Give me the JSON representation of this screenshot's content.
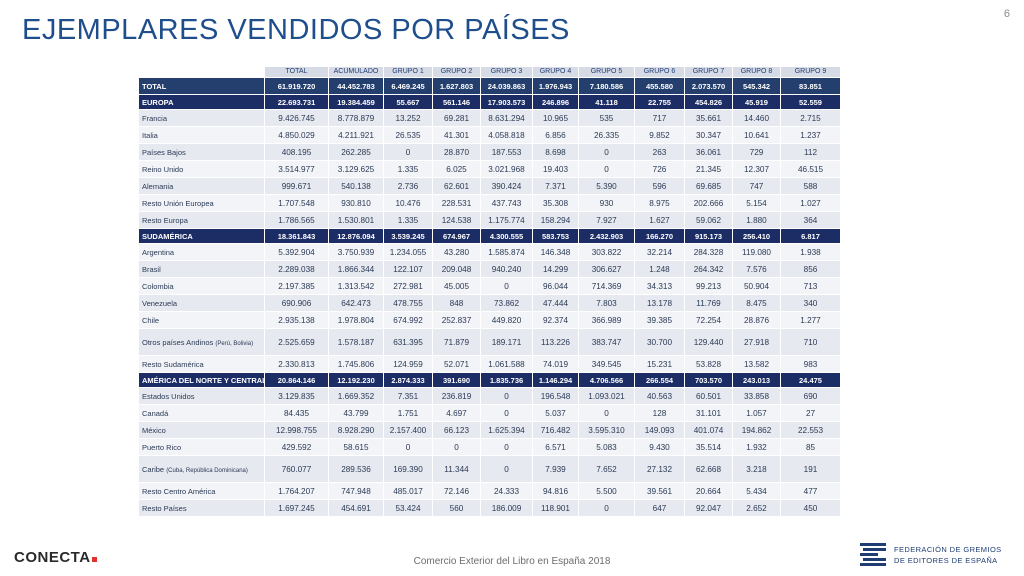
{
  "title": "EJEMPLARES VENDIDOS POR PAÍSES",
  "page_number": "6",
  "table": {
    "columns": [
      "TOTAL",
      "ACUMULADO",
      "GRUPO 1",
      "GRUPO 2",
      "GRUPO 3",
      "GRUPO 4",
      "GRUPO 5",
      "GRUPO 6",
      "GRUPO 7",
      "GRUPO 8",
      "GRUPO 9"
    ],
    "rows": [
      {
        "type": "total",
        "name": "TOTAL",
        "values": [
          "61.919.720",
          "44.452.783",
          "6.469.245",
          "1.627.803",
          "24.039.863",
          "1.976.943",
          "7.180.586",
          "455.580",
          "2.073.570",
          "545.342",
          "83.851"
        ]
      },
      {
        "type": "region",
        "name": "EUROPA",
        "values": [
          "22.693.731",
          "19.384.459",
          "55.667",
          "561.146",
          "17.903.573",
          "246.896",
          "41.118",
          "22.755",
          "454.826",
          "45.919",
          "52.559"
        ]
      },
      {
        "type": "country",
        "name": "Francia",
        "values": [
          "9.426.745",
          "8.778.879",
          "13.252",
          "69.281",
          "8.631.294",
          "10.965",
          "535",
          "717",
          "35.661",
          "14.460",
          "2.715"
        ]
      },
      {
        "type": "country",
        "name": "Italia",
        "values": [
          "4.850.029",
          "4.211.921",
          "26.535",
          "41.301",
          "4.058.818",
          "6.856",
          "26.335",
          "9.852",
          "30.347",
          "10.641",
          "1.237"
        ]
      },
      {
        "type": "country",
        "name": "Países Bajos",
        "values": [
          "408.195",
          "262.285",
          "0",
          "28.870",
          "187.553",
          "8.698",
          "0",
          "263",
          "36.061",
          "729",
          "112"
        ]
      },
      {
        "type": "country",
        "name": "Reino Unido",
        "values": [
          "3.514.977",
          "3.129.625",
          "1.335",
          "6.025",
          "3.021.968",
          "19.403",
          "0",
          "726",
          "21.345",
          "12.307",
          "46.515"
        ]
      },
      {
        "type": "country",
        "name": "Alemania",
        "values": [
          "999.671",
          "540.138",
          "2.736",
          "62.601",
          "390.424",
          "7.371",
          "5.390",
          "596",
          "69.685",
          "747",
          "588"
        ]
      },
      {
        "type": "country",
        "name": "Resto Unión Europea",
        "values": [
          "1.707.548",
          "930.810",
          "10.476",
          "228.531",
          "437.743",
          "35.308",
          "930",
          "8.975",
          "202.666",
          "5.154",
          "1.027"
        ]
      },
      {
        "type": "country",
        "name": "Resto Europa",
        "values": [
          "1.786.565",
          "1.530.801",
          "1.335",
          "124.538",
          "1.175.774",
          "158.294",
          "7.927",
          "1.627",
          "59.062",
          "1.880",
          "364"
        ]
      },
      {
        "type": "region",
        "name": "SUDAMÉRICA",
        "values": [
          "18.361.843",
          "12.876.094",
          "3.539.245",
          "674.967",
          "4.300.555",
          "583.753",
          "2.432.903",
          "166.270",
          "915.173",
          "256.410",
          "6.817"
        ]
      },
      {
        "type": "country",
        "name": "Argentina",
        "values": [
          "5.392.904",
          "3.750.939",
          "1.234.055",
          "43.280",
          "1.585.874",
          "146.348",
          "303.822",
          "32.214",
          "284.328",
          "119.080",
          "1.938"
        ]
      },
      {
        "type": "country",
        "name": "Brasil",
        "values": [
          "2.289.038",
          "1.866.344",
          "122.107",
          "209.048",
          "940.240",
          "14.299",
          "306.627",
          "1.248",
          "264.342",
          "7.576",
          "856"
        ]
      },
      {
        "type": "country",
        "name": "Colombia",
        "values": [
          "2.197.385",
          "1.313.542",
          "272.981",
          "45.005",
          "0",
          "96.044",
          "714.369",
          "34.313",
          "99.213",
          "50.904",
          "713"
        ]
      },
      {
        "type": "country",
        "name": "Venezuela",
        "values": [
          "690.906",
          "642.473",
          "478.755",
          "848",
          "73.862",
          "47.444",
          "7.803",
          "13.178",
          "11.769",
          "8.475",
          "340"
        ]
      },
      {
        "type": "country",
        "name": "Chile",
        "values": [
          "2.935.138",
          "1.978.804",
          "674.992",
          "252.837",
          "449.820",
          "92.374",
          "366.989",
          "39.385",
          "72.254",
          "28.876",
          "1.277"
        ]
      },
      {
        "type": "country",
        "tall": true,
        "name": "Otros países Andinos",
        "note": "(Perú, Bolivia)",
        "values": [
          "2.525.659",
          "1.578.187",
          "631.395",
          "71.879",
          "189.171",
          "113.226",
          "383.747",
          "30.700",
          "129.440",
          "27.918",
          "710"
        ]
      },
      {
        "type": "country",
        "name": "Resto Sudamérica",
        "values": [
          "2.330.813",
          "1.745.806",
          "124.959",
          "52.071",
          "1.061.588",
          "74.019",
          "349.545",
          "15.231",
          "53.828",
          "13.582",
          "983"
        ]
      },
      {
        "type": "region",
        "name": "AMÉRICA DEL NORTE Y CENTRAL",
        "values": [
          "20.864.146",
          "12.192.230",
          "2.874.333",
          "391.690",
          "1.835.736",
          "1.146.294",
          "4.706.566",
          "266.554",
          "703.570",
          "243.013",
          "24.475"
        ]
      },
      {
        "type": "country",
        "name": "Estados Unidos",
        "values": [
          "3.129.835",
          "1.669.352",
          "7.351",
          "236.819",
          "0",
          "196.548",
          "1.093.021",
          "40.563",
          "60.501",
          "33.858",
          "690"
        ]
      },
      {
        "type": "country",
        "name": "Canadá",
        "values": [
          "84.435",
          "43.799",
          "1.751",
          "4.697",
          "0",
          "5.037",
          "0",
          "128",
          "31.101",
          "1.057",
          "27"
        ]
      },
      {
        "type": "country",
        "name": "México",
        "values": [
          "12.998.755",
          "8.928.290",
          "2.157.400",
          "66.123",
          "1.625.394",
          "716.482",
          "3.595.310",
          "149.093",
          "401.074",
          "194.862",
          "22.553"
        ]
      },
      {
        "type": "country",
        "name": "Puerto Rico",
        "values": [
          "429.592",
          "58.615",
          "0",
          "0",
          "0",
          "6.571",
          "5.083",
          "9.430",
          "35.514",
          "1.932",
          "85"
        ]
      },
      {
        "type": "country",
        "tall": true,
        "name": "Caribe",
        "note": "(Cuba, República Dominicana)",
        "values": [
          "760.077",
          "289.536",
          "169.390",
          "11.344",
          "0",
          "7.939",
          "7.652",
          "27.132",
          "62.668",
          "3.218",
          "191"
        ]
      },
      {
        "type": "country",
        "name": "Resto Centro América",
        "values": [
          "1.764.207",
          "747.948",
          "485.017",
          "72.146",
          "24.333",
          "94.816",
          "5.500",
          "39.561",
          "20.664",
          "5.434",
          "477"
        ]
      },
      {
        "type": "country",
        "name": "Resto Países",
        "values": [
          "1.697.245",
          "454.691",
          "53.424",
          "560",
          "186.009",
          "118.901",
          "0",
          "647",
          "92.047",
          "2.652",
          "450"
        ]
      }
    ]
  },
  "footer": {
    "brand": "CONECTA",
    "caption": "Comercio Exterior del Libro en España 2018",
    "org_line1": "FEDERACIÓN DE GREMIOS",
    "org_line2": "DE EDITORES DE ESPAÑA"
  },
  "colors": {
    "title": "#1f4e8c",
    "header_bg": "#d6dbe6",
    "total_bg": "#243f6e",
    "region_bg": "#1c2d66",
    "row_odd": "#e6e9f0",
    "row_even": "#f2f4f8",
    "accent_red": "#e3312d"
  }
}
